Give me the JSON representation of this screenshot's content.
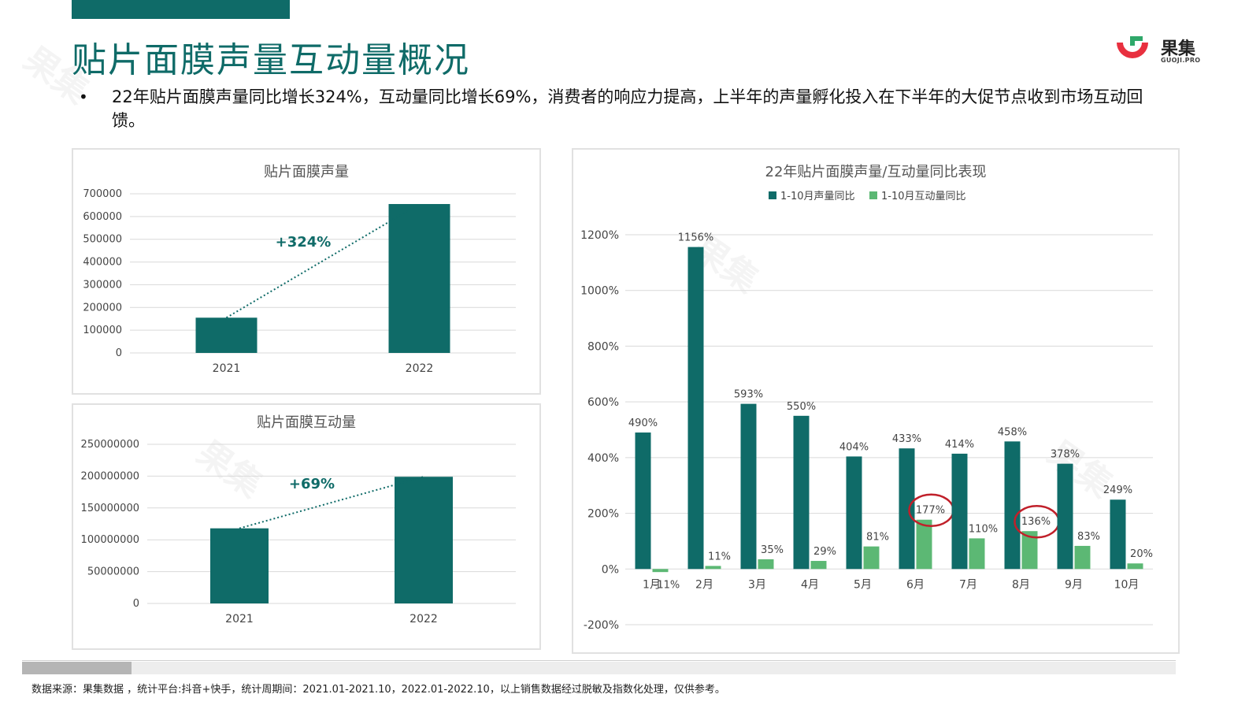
{
  "page": {
    "title": "贴片面膜声量互动量概况",
    "bullet": "22年贴片面膜声量同比增长324%，互动量同比增长69%，消费者的响应力提高，上半年的声量孵化投入在下半年的大促节点收到市场互动回馈。",
    "source": "数据来源：果集数据 ，统计平台:抖音+快手，统计周期间：2021.01-2021.10，2022.01-2022.10，以上销售数据经过脱敏及指数化处理，仅供参考。",
    "logo": {
      "name": "果集",
      "sub": "GUOJI.PRO",
      "colors": [
        "#e8303f",
        "#2fa86a"
      ]
    },
    "watermark": "果集"
  },
  "chart_data": [
    {
      "type": "bar",
      "title": "贴片面膜声量",
      "categories": [
        "2021",
        "2022"
      ],
      "values": [
        155000,
        655000
      ],
      "ylim": [
        0,
        700000
      ],
      "yticks": [
        "0",
        "100000",
        "200000",
        "300000",
        "400000",
        "500000",
        "600000",
        "700000"
      ],
      "annotation": "+324%",
      "grid": true,
      "color": "#0f6b68"
    },
    {
      "type": "bar",
      "title": "贴片面膜互动量",
      "categories": [
        "2021",
        "2022"
      ],
      "values": [
        118000000,
        199000000
      ],
      "ylim": [
        0,
        250000000
      ],
      "yticks": [
        "0",
        "50000000",
        "100000000",
        "150000000",
        "200000000",
        "250000000"
      ],
      "annotation": "+69%",
      "grid": true,
      "color": "#0f6b68"
    },
    {
      "type": "bar",
      "title": "22年贴片面膜声量/互动量同比表现",
      "categories": [
        "1月",
        "2月",
        "3月",
        "4月",
        "5月",
        "6月",
        "7月",
        "8月",
        "9月",
        "10月"
      ],
      "series": [
        {
          "name": "1-10月声量同比",
          "values": [
            490,
            1156,
            593,
            550,
            404,
            433,
            414,
            458,
            378,
            249
          ],
          "labels": [
            "490%",
            "1156%",
            "593%",
            "550%",
            "404%",
            "433%",
            "414%",
            "458%",
            "378%",
            "249%"
          ],
          "color": "#0f6b68"
        },
        {
          "name": "1-10月互动量同比",
          "values": [
            -11,
            11,
            35,
            29,
            81,
            177,
            110,
            136,
            83,
            20
          ],
          "labels": [
            "-11%",
            "11%",
            "35%",
            "29%",
            "81%",
            "177%",
            "110%",
            "136%",
            "83%",
            "20%"
          ],
          "color": "#5cb874"
        }
      ],
      "ylim": [
        -200,
        1200
      ],
      "yticks": [
        "-200%",
        "0%",
        "200%",
        "400%",
        "600%",
        "800%",
        "1000%",
        "1200%"
      ],
      "legend": "top",
      "grid": true,
      "highlighted": [
        "6月",
        "8月"
      ],
      "highlight_color": "#c0202a"
    }
  ]
}
